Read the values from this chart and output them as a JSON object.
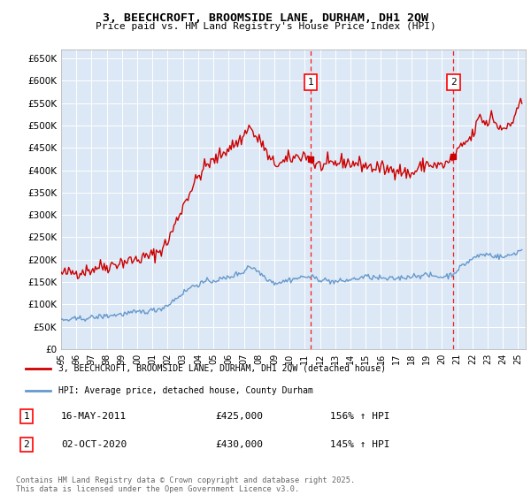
{
  "title": "3, BEECHCROFT, BROOMSIDE LANE, DURHAM, DH1 2QW",
  "subtitle": "Price paid vs. HM Land Registry's House Price Index (HPI)",
  "plot_bg_color": "#dce8f5",
  "ylim": [
    0,
    670000
  ],
  "yticks": [
    0,
    50000,
    100000,
    150000,
    200000,
    250000,
    300000,
    350000,
    400000,
    450000,
    500000,
    550000,
    600000,
    650000
  ],
  "ytick_labels": [
    "£0",
    "£50K",
    "£100K",
    "£150K",
    "£200K",
    "£250K",
    "£300K",
    "£350K",
    "£400K",
    "£450K",
    "£500K",
    "£550K",
    "£600K",
    "£650K"
  ],
  "xlim_start": 1995.0,
  "xlim_end": 2025.5,
  "xticks": [
    1995,
    1996,
    1997,
    1998,
    1999,
    2000,
    2001,
    2002,
    2003,
    2004,
    2005,
    2006,
    2007,
    2008,
    2009,
    2010,
    2011,
    2012,
    2013,
    2014,
    2015,
    2016,
    2017,
    2018,
    2019,
    2020,
    2021,
    2022,
    2023,
    2024,
    2025
  ],
  "red_line_color": "#cc0000",
  "blue_line_color": "#6699cc",
  "sale1_x": 2011.37,
  "sale1_y": 425000,
  "sale2_x": 2020.75,
  "sale2_y": 430000,
  "legend_label_red": "3, BEECHCROFT, BROOMSIDE LANE, DURHAM, DH1 2QW (detached house)",
  "legend_label_blue": "HPI: Average price, detached house, County Durham",
  "annotation1_date": "16-MAY-2011",
  "annotation1_price": "£425,000",
  "annotation1_hpi": "156% ↑ HPI",
  "annotation2_date": "02-OCT-2020",
  "annotation2_price": "£430,000",
  "annotation2_hpi": "145% ↑ HPI",
  "footer": "Contains HM Land Registry data © Crown copyright and database right 2025.\nThis data is licensed under the Open Government Licence v3.0."
}
